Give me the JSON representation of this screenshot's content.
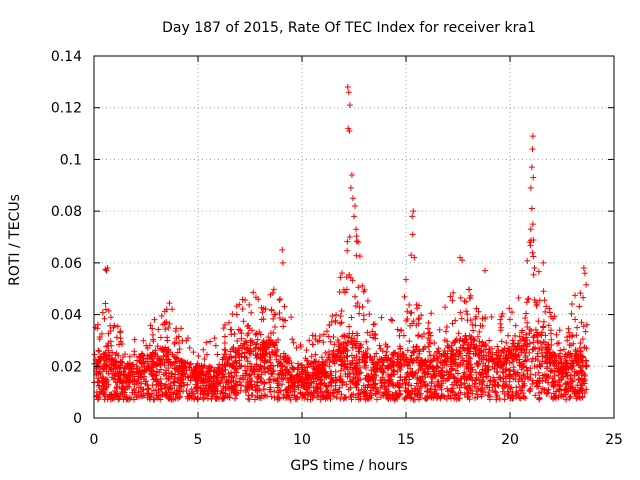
{
  "chart_data": {
    "type": "scatter",
    "title": "Day 187 of 2015, Rate Of TEC Index for receiver kra1",
    "xlabel": "GPS time / hours",
    "ylabel": "ROTI / TECUs",
    "xlim": [
      0,
      25
    ],
    "ylim": [
      0,
      0.14
    ],
    "grid": true,
    "x_ticks": [
      0,
      5,
      10,
      15,
      20,
      25
    ],
    "y_ticks": [
      0,
      0.02,
      0.04,
      0.06,
      0.08,
      0.1,
      0.12,
      0.14
    ],
    "x_tick_labels": [
      "0",
      "5",
      "10",
      "15",
      "20",
      "25"
    ],
    "y_tick_labels": [
      "0",
      "0.02",
      "0.04",
      "0.06",
      "0.08",
      "0.1",
      "0.12",
      "0.14"
    ],
    "marker": "+",
    "color": "#ff0000",
    "envelope": {
      "x": [
        0.0,
        0.5,
        1.0,
        1.5,
        2.0,
        2.5,
        3.0,
        3.5,
        4.0,
        4.5,
        5.0,
        5.5,
        6.0,
        6.5,
        7.0,
        7.5,
        8.0,
        8.5,
        9.0,
        9.5,
        10.0,
        10.5,
        11.0,
        11.5,
        12.0,
        12.5,
        13.0,
        13.5,
        14.0,
        14.5,
        15.0,
        15.5,
        16.0,
        16.5,
        17.0,
        17.5,
        18.0,
        18.5,
        19.0,
        19.5,
        20.0,
        20.5,
        21.0,
        21.5,
        22.0,
        22.5,
        23.0,
        23.5
      ],
      "base": [
        0.016,
        0.02,
        0.018,
        0.015,
        0.016,
        0.018,
        0.02,
        0.022,
        0.018,
        0.016,
        0.015,
        0.014,
        0.016,
        0.02,
        0.022,
        0.025,
        0.022,
        0.025,
        0.02,
        0.016,
        0.014,
        0.016,
        0.017,
        0.02,
        0.025,
        0.03,
        0.02,
        0.018,
        0.019,
        0.02,
        0.02,
        0.022,
        0.018,
        0.02,
        0.022,
        0.025,
        0.026,
        0.024,
        0.022,
        0.02,
        0.022,
        0.025,
        0.03,
        0.028,
        0.02,
        0.018,
        0.02,
        0.022
      ],
      "high": [
        0.035,
        0.045,
        0.038,
        0.03,
        0.032,
        0.036,
        0.04,
        0.05,
        0.038,
        0.032,
        0.03,
        0.03,
        0.032,
        0.04,
        0.048,
        0.056,
        0.045,
        0.05,
        0.06,
        0.038,
        0.03,
        0.032,
        0.035,
        0.04,
        0.065,
        0.085,
        0.05,
        0.038,
        0.04,
        0.04,
        0.055,
        0.045,
        0.04,
        0.042,
        0.045,
        0.055,
        0.052,
        0.05,
        0.045,
        0.04,
        0.045,
        0.05,
        0.075,
        0.055,
        0.04,
        0.038,
        0.045,
        0.055
      ]
    },
    "outliers": [
      {
        "x": 0.55,
        "y": 0.0575
      },
      {
        "x": 0.6,
        "y": 0.057
      },
      {
        "x": 0.65,
        "y": 0.058
      },
      {
        "x": 9.05,
        "y": 0.065
      },
      {
        "x": 9.08,
        "y": 0.06
      },
      {
        "x": 12.2,
        "y": 0.128
      },
      {
        "x": 12.25,
        "y": 0.126
      },
      {
        "x": 12.3,
        "y": 0.121
      },
      {
        "x": 12.22,
        "y": 0.112
      },
      {
        "x": 12.28,
        "y": 0.111
      },
      {
        "x": 12.4,
        "y": 0.094
      },
      {
        "x": 12.35,
        "y": 0.089
      },
      {
        "x": 12.45,
        "y": 0.085
      },
      {
        "x": 12.55,
        "y": 0.082
      },
      {
        "x": 12.5,
        "y": 0.078
      },
      {
        "x": 12.6,
        "y": 0.073
      },
      {
        "x": 12.3,
        "y": 0.07
      },
      {
        "x": 12.7,
        "y": 0.068
      },
      {
        "x": 15.35,
        "y": 0.08
      },
      {
        "x": 15.3,
        "y": 0.078
      },
      {
        "x": 15.32,
        "y": 0.071
      },
      {
        "x": 15.25,
        "y": 0.063
      },
      {
        "x": 15.4,
        "y": 0.062
      },
      {
        "x": 17.6,
        "y": 0.062
      },
      {
        "x": 17.7,
        "y": 0.061
      },
      {
        "x": 18.8,
        "y": 0.057
      },
      {
        "x": 21.1,
        "y": 0.109
      },
      {
        "x": 21.08,
        "y": 0.104
      },
      {
        "x": 21.05,
        "y": 0.097
      },
      {
        "x": 21.12,
        "y": 0.093
      },
      {
        "x": 21.0,
        "y": 0.089
      },
      {
        "x": 21.05,
        "y": 0.081
      },
      {
        "x": 21.1,
        "y": 0.075
      },
      {
        "x": 21.0,
        "y": 0.073
      },
      {
        "x": 20.95,
        "y": 0.068
      },
      {
        "x": 21.6,
        "y": 0.06
      },
      {
        "x": 23.55,
        "y": 0.058
      },
      {
        "x": 23.6,
        "y": 0.056
      }
    ]
  }
}
